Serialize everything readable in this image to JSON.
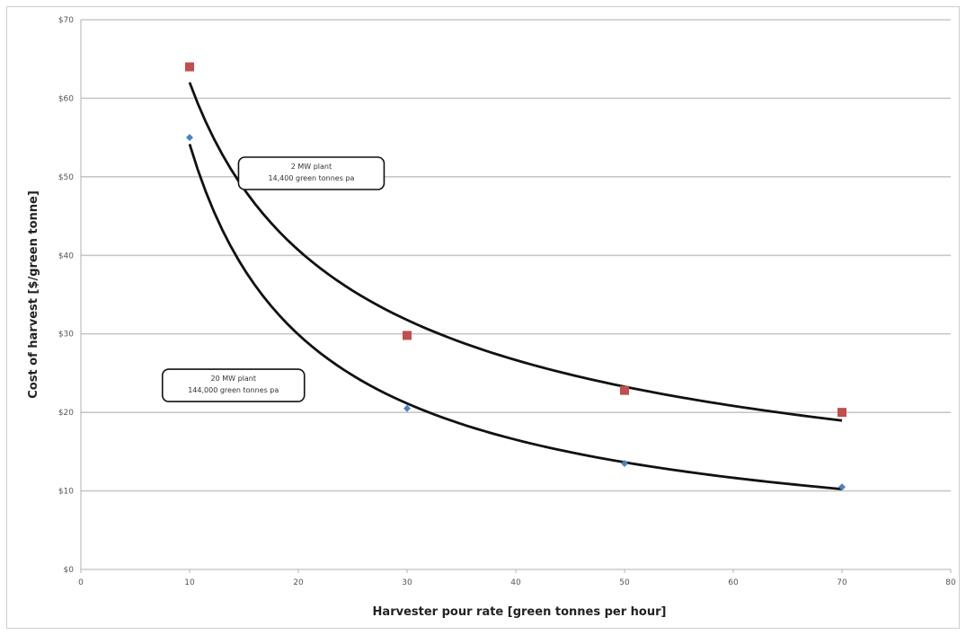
{
  "chart_data": {
    "type": "scatter",
    "xlabel": "Harvester pour rate [green tonnes per hour]",
    "ylabel": "Cost of harvest [$/green tonne]",
    "xlim": [
      0,
      80
    ],
    "ylim": [
      0,
      70
    ],
    "x_ticks": [
      "0",
      "10",
      "20",
      "30",
      "40",
      "50",
      "60",
      "70",
      "80"
    ],
    "y_ticks": [
      "$0",
      "$10",
      "$20",
      "$30",
      "$40",
      "$50",
      "$60",
      "$70"
    ],
    "grid": "horizontal",
    "series": [
      {
        "color": "#c0504d",
        "marker": "square",
        "x": [
          10,
          30,
          50,
          70
        ],
        "y": [
          64,
          29.8,
          22.8,
          20
        ],
        "trendline": "power"
      },
      {
        "color": "#4f81bd",
        "marker": "diamond",
        "x": [
          10,
          30,
          50,
          70
        ],
        "y": [
          55,
          20.5,
          13.5,
          10.5
        ],
        "trendline": "power"
      }
    ],
    "annotations": [
      {
        "lines": [
          "2 MW plant",
          "14,400 green tonnes pa"
        ],
        "series": 0
      },
      {
        "lines": [
          "20 MW plant",
          "144,000 green tonnes pa"
        ],
        "series": 1
      }
    ]
  }
}
